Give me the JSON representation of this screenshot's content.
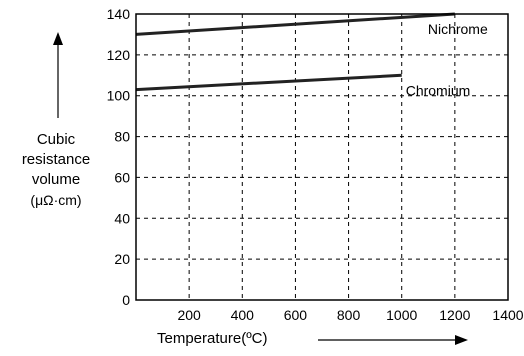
{
  "chart_data": {
    "type": "line",
    "ylabel_lines": [
      "Cubic",
      "resistance",
      "volume"
    ],
    "ylabel_unit": "(μΩ·cm)",
    "xlabel": "Temperature(ºC)",
    "xlim": [
      0,
      1400
    ],
    "ylim": [
      0,
      140
    ],
    "x_ticks": [
      200,
      400,
      600,
      800,
      1000,
      1200,
      1400
    ],
    "y_ticks": [
      0,
      20,
      40,
      60,
      80,
      100,
      120,
      140
    ],
    "grid": true,
    "series": [
      {
        "name": "Nichrome",
        "x": [
          0,
          1200
        ],
        "y": [
          130,
          140
        ]
      },
      {
        "name": "Chromium",
        "x": [
          0,
          1000
        ],
        "y": [
          103,
          110
        ]
      }
    ]
  }
}
